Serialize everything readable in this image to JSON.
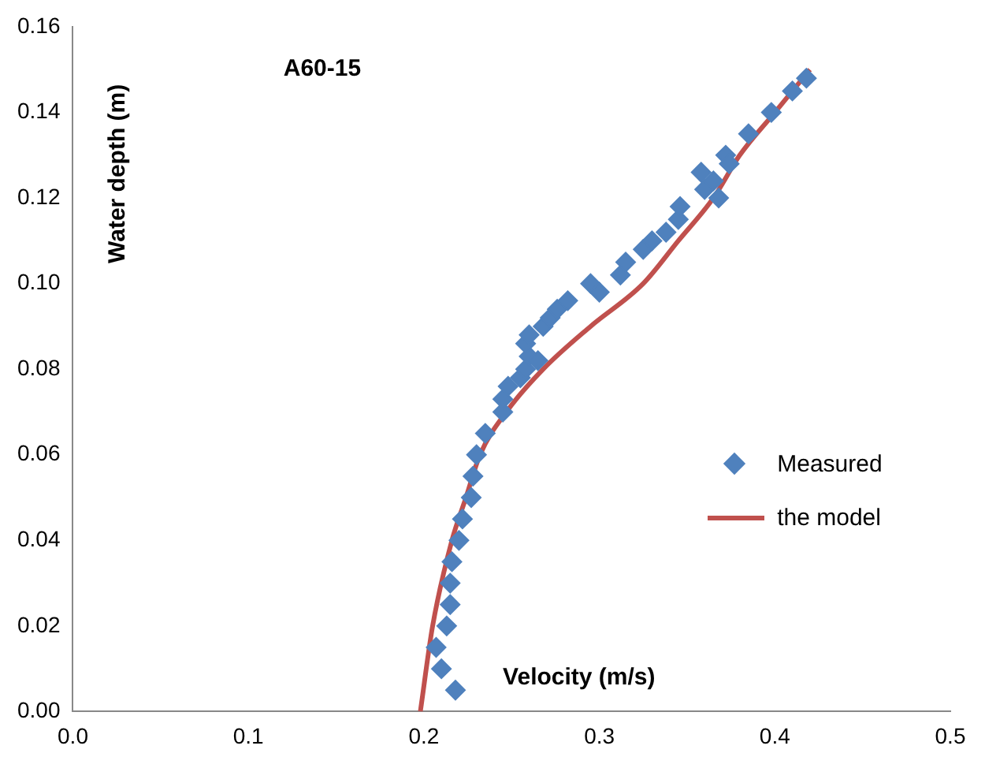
{
  "chart_data": {
    "type": "scatter",
    "xlabel": "Velocity (m/s)",
    "ylabel": "Water depth (m)",
    "annotations": [
      "A60-15"
    ],
    "xlim": [
      0,
      0.5
    ],
    "xticks": [
      {
        "value": 0,
        "label": "0.0"
      },
      0.1,
      0.2,
      0.3,
      0.4,
      0.5
    ],
    "ylim": [
      0,
      0.16
    ],
    "yticks": [
      {
        "value": 0,
        "label": "0.00"
      },
      0.02,
      0.04,
      0.06,
      0.08,
      {
        "value": 0.1,
        "label": "0.10"
      },
      0.12,
      0.14,
      0.16
    ],
    "grid": false,
    "legend": "right",
    "series": [
      {
        "name": "Measured",
        "type": "scatter",
        "marker": "diamond",
        "color": "#4f81bd",
        "x": [
          0.218,
          0.21,
          0.207,
          0.213,
          0.215,
          0.215,
          0.216,
          0.22,
          0.222,
          0.227,
          0.228,
          0.23,
          0.235,
          0.245,
          0.245,
          0.248,
          0.255,
          0.258,
          0.26,
          0.258,
          0.26,
          0.265,
          0.268,
          0.272,
          0.276,
          0.282,
          0.295,
          0.3,
          0.312,
          0.315,
          0.325,
          0.33,
          0.338,
          0.345,
          0.346,
          0.358,
          0.36,
          0.365,
          0.368,
          0.372,
          0.374,
          0.385,
          0.398,
          0.41,
          0.418
        ],
        "values": [
          0.005,
          0.01,
          0.015,
          0.02,
          0.025,
          0.03,
          0.035,
          0.04,
          0.045,
          0.05,
          0.055,
          0.06,
          0.065,
          0.07,
          0.073,
          0.076,
          0.078,
          0.08,
          0.083,
          0.086,
          0.088,
          0.082,
          0.09,
          0.092,
          0.094,
          0.096,
          0.1,
          0.098,
          0.102,
          0.105,
          0.108,
          0.11,
          0.112,
          0.115,
          0.118,
          0.126,
          0.122,
          0.124,
          0.12,
          0.13,
          0.128,
          0.135,
          0.14,
          0.145,
          0.148
        ]
      },
      {
        "name": "the model",
        "type": "line",
        "marker": "none",
        "line_style": "solid",
        "color": "#c0504d",
        "x": [
          0.198,
          0.205,
          0.216,
          0.224,
          0.232,
          0.247,
          0.268,
          0.295,
          0.325,
          0.345,
          0.365,
          0.38,
          0.4,
          0.42
        ],
        "values": [
          0,
          0.02,
          0.04,
          0.05,
          0.06,
          0.07,
          0.08,
          0.09,
          0.1,
          0.11,
          0.12,
          0.13,
          0.14,
          0.15
        ]
      }
    ]
  }
}
